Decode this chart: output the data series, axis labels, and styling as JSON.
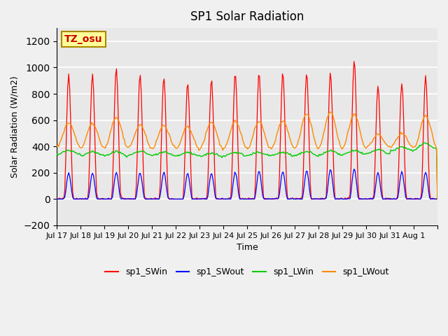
{
  "title": "SP1 Solar Radiation",
  "xlabel": "Time",
  "ylabel": "Solar Radiation (W/m2)",
  "annotation": "TZ_osu",
  "ylim": [
    -200,
    1300
  ],
  "yticks": [
    -200,
    0,
    200,
    400,
    600,
    800,
    1000,
    1200
  ],
  "x_tick_positions": [
    0,
    1,
    2,
    3,
    4,
    5,
    6,
    7,
    8,
    9,
    10,
    11,
    12,
    13,
    14,
    15,
    16
  ],
  "x_tick_labels": [
    "Jul 17",
    "Jul 18",
    "Jul 19",
    "Jul 20",
    "Jul 21",
    "Jul 22",
    "Jul 23",
    "Jul 24",
    "Jul 25",
    "Jul 26",
    "Jul 27",
    "Jul 28",
    "Jul 29",
    "Jul 30",
    "Jul 31",
    "Aug 1",
    ""
  ],
  "colors": {
    "sp1_SWin": "#ff0000",
    "sp1_SWout": "#0000ff",
    "sp1_LWin": "#00cc00",
    "sp1_LWout": "#ff8800"
  },
  "legend_labels": [
    "sp1_SWin",
    "sp1_SWout",
    "sp1_LWin",
    "sp1_LWout"
  ],
  "background_color": "#e8e8e8",
  "grid_color": "#ffffff",
  "annotation_bg": "#ffff99",
  "annotation_border": "#aa8800",
  "sw_in_peaks": [
    950,
    950,
    1000,
    950,
    930,
    880,
    910,
    960,
    960,
    960,
    960,
    960,
    1060,
    860,
    890,
    930
  ],
  "sw_out_peaks": [
    200,
    200,
    205,
    200,
    200,
    195,
    195,
    205,
    215,
    210,
    215,
    225,
    230,
    200,
    205,
    205
  ],
  "lw_in_base": [
    340,
    330,
    330,
    335,
    330,
    330,
    325,
    330,
    330,
    330,
    330,
    335,
    340,
    345,
    365,
    380
  ],
  "lw_in_day_variation": [
    30,
    30,
    30,
    30,
    30,
    25,
    25,
    25,
    25,
    25,
    30,
    30,
    30,
    30,
    30,
    40
  ],
  "lw_out_base": [
    400,
    390,
    390,
    390,
    385,
    380,
    380,
    385,
    380,
    385,
    385,
    390,
    390,
    395,
    390,
    390
  ],
  "lw_out_day_peak": [
    580,
    570,
    620,
    560,
    560,
    550,
    585,
    590,
    590,
    595,
    645,
    660,
    640,
    490,
    500,
    630
  ]
}
